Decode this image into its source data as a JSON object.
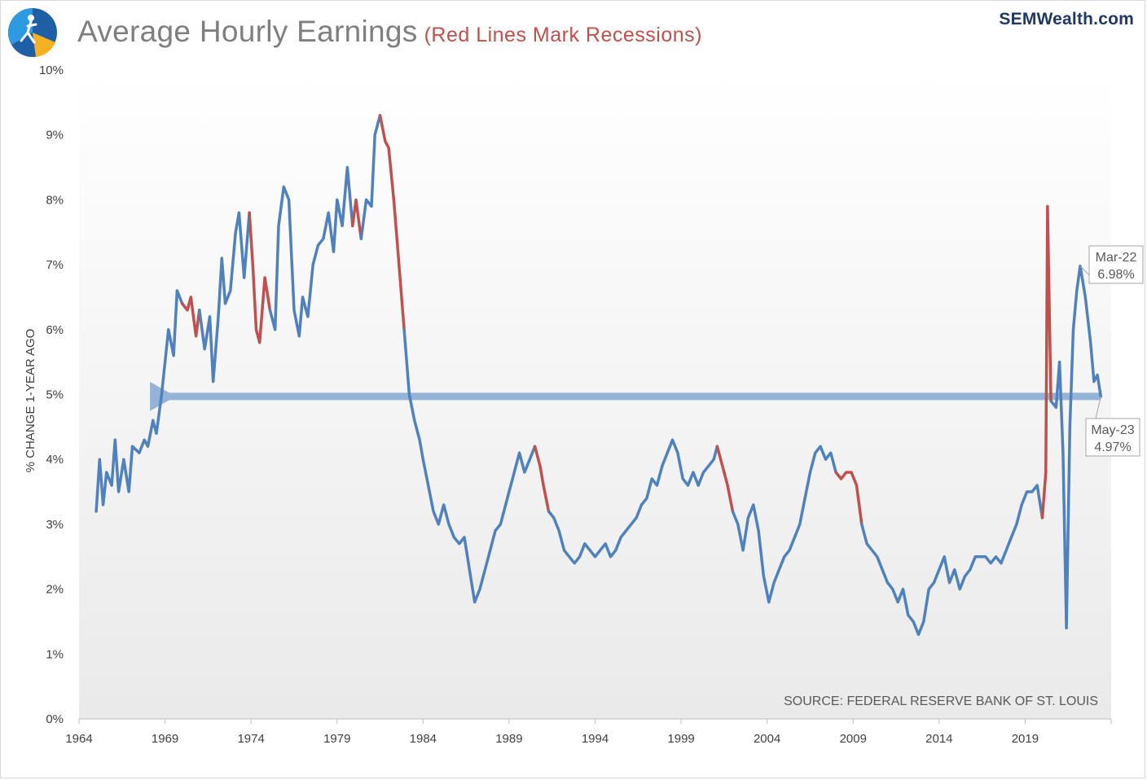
{
  "header": {
    "title": "Average Hourly Earnings",
    "subtitle": "(Red Lines Mark Recessions)",
    "brand": "SEMWealth.com"
  },
  "colors": {
    "series": "#4f81bd",
    "recession": "#c0504d",
    "arrow": "#95b3d7",
    "title": "#7f7f7f",
    "subtitle": "#c0504d",
    "brand": "#1f3864",
    "axis_text": "#404040"
  },
  "icons": {
    "logo": "sem-logo-icon"
  },
  "chart_data": {
    "type": "line",
    "title": "Average Hourly Earnings",
    "subtitle": "(Red Lines Mark Recessions)",
    "xlabel": "",
    "ylabel": "% CHANGE 1-YEAR AGO",
    "xlim": [
      1964,
      2024
    ],
    "ylim": [
      0,
      10
    ],
    "x_ticks": [
      1964,
      1969,
      1974,
      1979,
      1984,
      1989,
      1994,
      1999,
      2004,
      2009,
      2014,
      2019
    ],
    "x_tick_labels": [
      "1964",
      "1969",
      "1974",
      "1979",
      "1984",
      "1989",
      "1994",
      "1999",
      "2004",
      "2009",
      "2014",
      "2019"
    ],
    "y_ticks": [
      0,
      1,
      2,
      3,
      4,
      5,
      6,
      7,
      8,
      9,
      10
    ],
    "y_tick_labels": [
      "0%",
      "1%",
      "2%",
      "3%",
      "4%",
      "5%",
      "6%",
      "7%",
      "8%",
      "9%",
      "10%"
    ],
    "grid": false,
    "series": [
      {
        "name": "Average Hourly Earnings (% change 1-year ago)",
        "points": [
          [
            1965.0,
            3.2
          ],
          [
            1965.2,
            4.0
          ],
          [
            1965.4,
            3.3
          ],
          [
            1965.6,
            3.8
          ],
          [
            1965.9,
            3.6
          ],
          [
            1966.1,
            4.3
          ],
          [
            1966.3,
            3.5
          ],
          [
            1966.6,
            4.0
          ],
          [
            1966.9,
            3.5
          ],
          [
            1967.1,
            4.2
          ],
          [
            1967.5,
            4.1
          ],
          [
            1967.8,
            4.3
          ],
          [
            1968.0,
            4.2
          ],
          [
            1968.3,
            4.6
          ],
          [
            1968.5,
            4.4
          ],
          [
            1968.8,
            5.0
          ],
          [
            1969.0,
            5.5
          ],
          [
            1969.2,
            6.0
          ],
          [
            1969.5,
            5.6
          ],
          [
            1969.7,
            6.6
          ],
          [
            1970.0,
            6.4
          ],
          [
            1970.3,
            6.3
          ],
          [
            1970.5,
            6.5
          ],
          [
            1970.8,
            5.9
          ],
          [
            1971.0,
            6.3
          ],
          [
            1971.3,
            5.7
          ],
          [
            1971.6,
            6.2
          ],
          [
            1971.8,
            5.2
          ],
          [
            1972.1,
            6.2
          ],
          [
            1972.3,
            7.1
          ],
          [
            1972.5,
            6.4
          ],
          [
            1972.8,
            6.6
          ],
          [
            1973.1,
            7.5
          ],
          [
            1973.3,
            7.8
          ],
          [
            1973.6,
            6.8
          ],
          [
            1973.9,
            7.8
          ],
          [
            1974.1,
            7.0
          ],
          [
            1974.3,
            6.0
          ],
          [
            1974.5,
            5.8
          ],
          [
            1974.8,
            6.8
          ],
          [
            1975.1,
            6.3
          ],
          [
            1975.4,
            6.0
          ],
          [
            1975.6,
            7.6
          ],
          [
            1975.9,
            8.2
          ],
          [
            1976.2,
            8.0
          ],
          [
            1976.5,
            6.3
          ],
          [
            1976.8,
            5.9
          ],
          [
            1977.0,
            6.5
          ],
          [
            1977.3,
            6.2
          ],
          [
            1977.6,
            7.0
          ],
          [
            1977.9,
            7.3
          ],
          [
            1978.2,
            7.4
          ],
          [
            1978.5,
            7.8
          ],
          [
            1978.8,
            7.2
          ],
          [
            1979.0,
            8.0
          ],
          [
            1979.3,
            7.6
          ],
          [
            1979.6,
            8.5
          ],
          [
            1979.9,
            7.6
          ],
          [
            1980.1,
            8.0
          ],
          [
            1980.4,
            7.4
          ],
          [
            1980.7,
            8.0
          ],
          [
            1981.0,
            7.9
          ],
          [
            1981.2,
            9.0
          ],
          [
            1981.5,
            9.3
          ],
          [
            1981.8,
            8.9
          ],
          [
            1982.0,
            8.8
          ],
          [
            1982.3,
            8.0
          ],
          [
            1982.6,
            7.0
          ],
          [
            1982.9,
            6.0
          ],
          [
            1983.2,
            5.0
          ],
          [
            1983.5,
            4.6
          ],
          [
            1983.8,
            4.3
          ],
          [
            1984.0,
            4.0
          ],
          [
            1984.3,
            3.6
          ],
          [
            1984.6,
            3.2
          ],
          [
            1984.9,
            3.0
          ],
          [
            1985.2,
            3.3
          ],
          [
            1985.5,
            3.0
          ],
          [
            1985.8,
            2.8
          ],
          [
            1986.1,
            2.7
          ],
          [
            1986.4,
            2.8
          ],
          [
            1986.7,
            2.3
          ],
          [
            1987.0,
            1.8
          ],
          [
            1987.3,
            2.0
          ],
          [
            1987.6,
            2.3
          ],
          [
            1987.9,
            2.6
          ],
          [
            1988.2,
            2.9
          ],
          [
            1988.5,
            3.0
          ],
          [
            1988.8,
            3.3
          ],
          [
            1989.0,
            3.5
          ],
          [
            1989.3,
            3.8
          ],
          [
            1989.6,
            4.1
          ],
          [
            1989.9,
            3.8
          ],
          [
            1990.2,
            4.0
          ],
          [
            1990.5,
            4.2
          ],
          [
            1990.8,
            3.9
          ],
          [
            1991.0,
            3.6
          ],
          [
            1991.3,
            3.2
          ],
          [
            1991.6,
            3.1
          ],
          [
            1991.9,
            2.9
          ],
          [
            1992.2,
            2.6
          ],
          [
            1992.5,
            2.5
          ],
          [
            1992.8,
            2.4
          ],
          [
            1993.1,
            2.5
          ],
          [
            1993.4,
            2.7
          ],
          [
            1993.7,
            2.6
          ],
          [
            1994.0,
            2.5
          ],
          [
            1994.3,
            2.6
          ],
          [
            1994.6,
            2.7
          ],
          [
            1994.9,
            2.5
          ],
          [
            1995.2,
            2.6
          ],
          [
            1995.5,
            2.8
          ],
          [
            1995.8,
            2.9
          ],
          [
            1996.1,
            3.0
          ],
          [
            1996.4,
            3.1
          ],
          [
            1996.7,
            3.3
          ],
          [
            1997.0,
            3.4
          ],
          [
            1997.3,
            3.7
          ],
          [
            1997.6,
            3.6
          ],
          [
            1997.9,
            3.9
          ],
          [
            1998.2,
            4.1
          ],
          [
            1998.5,
            4.3
          ],
          [
            1998.8,
            4.1
          ],
          [
            1999.1,
            3.7
          ],
          [
            1999.4,
            3.6
          ],
          [
            1999.7,
            3.8
          ],
          [
            2000.0,
            3.6
          ],
          [
            2000.3,
            3.8
          ],
          [
            2000.6,
            3.9
          ],
          [
            2000.9,
            4.0
          ],
          [
            2001.1,
            4.2
          ],
          [
            2001.4,
            3.9
          ],
          [
            2001.7,
            3.6
          ],
          [
            2002.0,
            3.2
          ],
          [
            2002.3,
            3.0
          ],
          [
            2002.6,
            2.6
          ],
          [
            2002.9,
            3.1
          ],
          [
            2003.2,
            3.3
          ],
          [
            2003.5,
            2.9
          ],
          [
            2003.8,
            2.2
          ],
          [
            2004.1,
            1.8
          ],
          [
            2004.4,
            2.1
          ],
          [
            2004.7,
            2.3
          ],
          [
            2005.0,
            2.5
          ],
          [
            2005.3,
            2.6
          ],
          [
            2005.6,
            2.8
          ],
          [
            2005.9,
            3.0
          ],
          [
            2006.2,
            3.4
          ],
          [
            2006.5,
            3.8
          ],
          [
            2006.8,
            4.1
          ],
          [
            2007.1,
            4.2
          ],
          [
            2007.4,
            4.0
          ],
          [
            2007.7,
            4.1
          ],
          [
            2008.0,
            3.8
          ],
          [
            2008.3,
            3.7
          ],
          [
            2008.6,
            3.8
          ],
          [
            2008.9,
            3.8
          ],
          [
            2009.2,
            3.6
          ],
          [
            2009.5,
            3.0
          ],
          [
            2009.8,
            2.7
          ],
          [
            2010.1,
            2.6
          ],
          [
            2010.4,
            2.5
          ],
          [
            2010.7,
            2.3
          ],
          [
            2011.0,
            2.1
          ],
          [
            2011.3,
            2.0
          ],
          [
            2011.6,
            1.8
          ],
          [
            2011.9,
            2.0
          ],
          [
            2012.2,
            1.6
          ],
          [
            2012.5,
            1.5
          ],
          [
            2012.8,
            1.3
          ],
          [
            2013.1,
            1.5
          ],
          [
            2013.4,
            2.0
          ],
          [
            2013.7,
            2.1
          ],
          [
            2014.0,
            2.3
          ],
          [
            2014.3,
            2.5
          ],
          [
            2014.6,
            2.1
          ],
          [
            2014.9,
            2.3
          ],
          [
            2015.2,
            2.0
          ],
          [
            2015.5,
            2.2
          ],
          [
            2015.8,
            2.3
          ],
          [
            2016.1,
            2.5
          ],
          [
            2016.4,
            2.5
          ],
          [
            2016.7,
            2.5
          ],
          [
            2017.0,
            2.4
          ],
          [
            2017.3,
            2.5
          ],
          [
            2017.6,
            2.4
          ],
          [
            2017.9,
            2.6
          ],
          [
            2018.2,
            2.8
          ],
          [
            2018.5,
            3.0
          ],
          [
            2018.8,
            3.3
          ],
          [
            2019.1,
            3.5
          ],
          [
            2019.4,
            3.5
          ],
          [
            2019.7,
            3.6
          ],
          [
            2020.0,
            3.1
          ],
          [
            2020.2,
            3.8
          ],
          [
            2020.3,
            7.9
          ],
          [
            2020.5,
            4.9
          ],
          [
            2020.8,
            4.8
          ],
          [
            2021.0,
            5.5
          ],
          [
            2021.2,
            4.1
          ],
          [
            2021.4,
            1.4
          ],
          [
            2021.6,
            4.5
          ],
          [
            2021.8,
            6.0
          ],
          [
            2022.0,
            6.6
          ],
          [
            2022.2,
            6.98
          ],
          [
            2022.5,
            6.5
          ],
          [
            2022.8,
            5.8
          ],
          [
            2023.0,
            5.2
          ],
          [
            2023.2,
            5.3
          ],
          [
            2023.4,
            4.97
          ]
        ]
      }
    ],
    "recessions": [
      [
        1969.9,
        1970.9
      ],
      [
        1973.9,
        1975.2
      ],
      [
        1980.0,
        1980.5
      ],
      [
        1981.5,
        1982.9
      ],
      [
        1990.6,
        1991.2
      ],
      [
        2001.2,
        2001.9
      ],
      [
        2007.9,
        2009.5
      ],
      [
        2020.1,
        2020.4
      ]
    ],
    "annotations": [
      {
        "label": "Mar-22",
        "value_label": "6.98%",
        "x": 2022.2,
        "y": 6.98
      },
      {
        "label": "May-23",
        "value_label": "4.97%",
        "x": 2023.4,
        "y": 4.97
      }
    ],
    "reference_arrow": {
      "from_x": 2023.4,
      "to_x": 1968.6,
      "y": 4.97
    },
    "source": "SOURCE:  FEDERAL RESERVE BANK OF ST. LOUIS"
  }
}
